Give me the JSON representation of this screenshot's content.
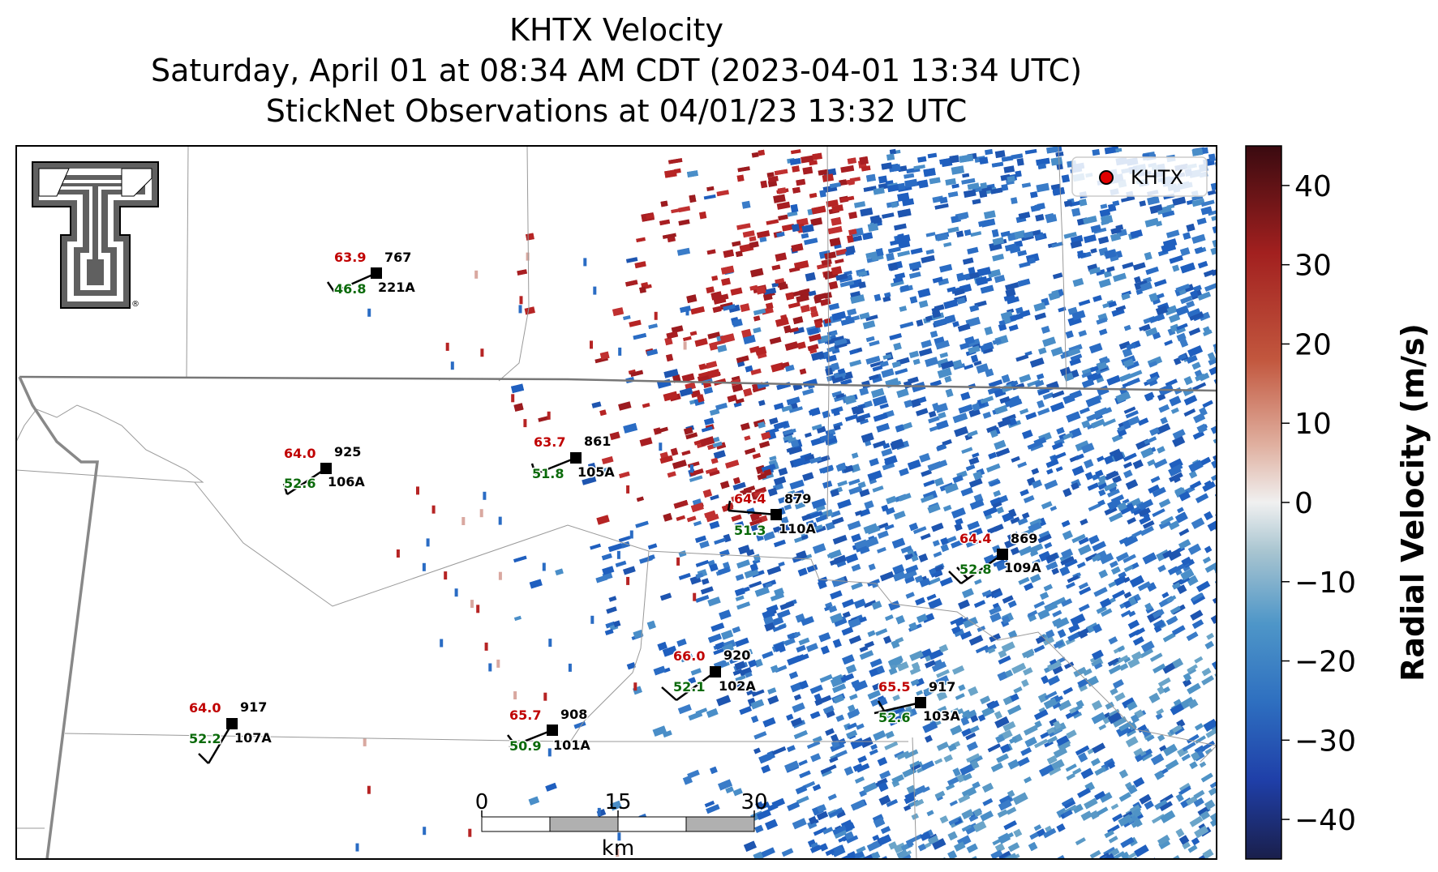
{
  "title": {
    "line1": "KHTX Velocity",
    "line2": "Saturday, April 01 at 08:34 AM CDT (2023-04-01 13:34 UTC)",
    "line3": "StickNet Observations at 04/01/23 13:32 UTC"
  },
  "legend": {
    "label": "KHTX",
    "marker_color": "#e00000"
  },
  "colorbar": {
    "label": "Radial Velocity (m/s)",
    "ticks": [
      "40",
      "30",
      "20",
      "10",
      "0",
      "−10",
      "−20",
      "−30",
      "−40"
    ],
    "range": [
      -45,
      45
    ],
    "colors": [
      "#1a1f4b",
      "#1f3fa8",
      "#2e6fc0",
      "#4e96c8",
      "#a7c4d0",
      "#f0f0f0",
      "#e0b0a0",
      "#c2573e",
      "#a2201f",
      "#3a0a10"
    ]
  },
  "scalebar": {
    "labels": [
      "0",
      "15",
      "30"
    ],
    "unit": "km"
  },
  "stations": [
    {
      "id": "221A",
      "temp": "63.9",
      "pressure": "767",
      "dewpoint": "46.8"
    },
    {
      "id": "106A",
      "temp": "64.0",
      "pressure": "925",
      "dewpoint": "52.6"
    },
    {
      "id": "105A",
      "temp": "63.7",
      "pressure": "861",
      "dewpoint": "51.8"
    },
    {
      "id": "110A",
      "temp": "64.4",
      "pressure": "879",
      "dewpoint": "51.3"
    },
    {
      "id": "109A",
      "temp": "64.4",
      "pressure": "869",
      "dewpoint": "52.8"
    },
    {
      "id": "102A",
      "temp": "66.0",
      "pressure": "920",
      "dewpoint": "52.1"
    },
    {
      "id": "103A",
      "temp": "65.5",
      "pressure": "917",
      "dewpoint": "52.6"
    },
    {
      "id": "107A",
      "temp": "64.0",
      "pressure": "917",
      "dewpoint": "52.2"
    },
    {
      "id": "101A",
      "temp": "65.7",
      "pressure": "908",
      "dewpoint": "50.9"
    }
  ]
}
